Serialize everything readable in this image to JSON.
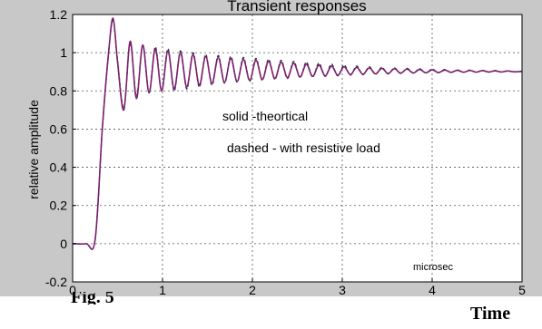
{
  "chart_data": {
    "type": "line",
    "title": "Transient responses",
    "ylabel": "relative amplitude",
    "xlabel": "microsec",
    "xlim": [
      0,
      5
    ],
    "ylim": [
      -0.2,
      1.2
    ],
    "xticks": [
      "0",
      "1",
      "2",
      "3",
      "4",
      "5"
    ],
    "yticks": [
      "-0.2",
      "0",
      "0.2",
      "0.4",
      "0.6",
      "0.8",
      "1",
      "1.2"
    ],
    "grid": true,
    "annotations": [
      "solid -theortical",
      "dashed - with resistive load"
    ],
    "series": [
      {
        "style": "solid",
        "color": "#7a1f6e",
        "x": [
          0,
          0.15,
          0.25,
          0.33,
          0.4,
          0.45,
          0.5,
          0.57,
          0.64,
          0.71,
          0.78,
          0.85,
          0.92,
          0.99,
          1.06,
          1.13,
          1.2,
          1.27,
          1.34,
          1.41,
          1.48,
          1.55,
          1.62,
          1.69,
          1.76,
          1.83,
          1.9,
          1.97,
          2.04,
          2.11,
          2.18,
          2.25,
          2.32,
          2.39,
          2.46,
          2.53,
          2.6,
          2.67,
          2.74,
          2.81,
          2.88,
          2.95,
          3.02,
          3.09,
          3.16,
          3.23,
          3.3,
          3.37,
          3.44,
          3.51,
          3.58,
          3.65,
          3.72,
          3.79,
          3.86,
          3.93,
          4.0,
          4.07,
          4.14,
          4.21,
          4.28,
          4.35,
          4.42,
          4.49,
          4.56,
          4.63,
          4.7,
          4.77,
          4.84,
          4.91,
          5.0
        ],
        "y": [
          0,
          0,
          0.02,
          0.6,
          1.0,
          1.18,
          0.95,
          0.7,
          1.06,
          0.76,
          1.04,
          0.79,
          1.02,
          0.8,
          1.01,
          0.81,
          1.0,
          0.82,
          0.99,
          0.83,
          0.98,
          0.84,
          0.975,
          0.845,
          0.97,
          0.85,
          0.965,
          0.855,
          0.96,
          0.86,
          0.955,
          0.865,
          0.95,
          0.87,
          0.945,
          0.873,
          0.94,
          0.876,
          0.935,
          0.879,
          0.93,
          0.882,
          0.926,
          0.885,
          0.923,
          0.887,
          0.92,
          0.889,
          0.918,
          0.891,
          0.916,
          0.893,
          0.914,
          0.894,
          0.912,
          0.895,
          0.91,
          0.896,
          0.909,
          0.897,
          0.908,
          0.898,
          0.907,
          0.898,
          0.906,
          0.899,
          0.905,
          0.899,
          0.904,
          0.9,
          0.902
        ]
      },
      {
        "style": "dashed",
        "color": "#2a2a3a",
        "x": [
          0,
          0.15,
          0.25,
          0.33,
          0.4,
          0.45,
          0.5,
          0.57,
          0.64,
          0.71,
          0.78,
          0.85,
          0.92,
          0.99,
          1.06,
          1.13,
          1.2,
          1.27,
          1.34,
          1.41,
          1.48,
          1.55,
          1.62,
          1.69,
          1.76,
          1.83,
          1.9,
          1.97,
          2.04,
          2.11,
          2.18,
          2.25,
          2.32,
          2.39,
          2.46,
          2.53,
          2.6,
          2.67,
          2.74,
          2.81,
          2.88,
          2.95,
          3.02,
          3.09,
          3.16,
          3.23,
          3.3,
          3.37,
          3.44,
          3.51,
          3.58,
          3.65,
          3.72,
          3.79,
          3.86,
          3.93,
          4.0,
          4.07,
          4.14,
          4.21,
          4.28,
          4.35,
          4.42,
          4.49,
          4.56,
          4.63,
          4.7,
          4.77,
          4.84,
          4.91,
          5.0
        ],
        "y": [
          0,
          0,
          0.02,
          0.6,
          1.0,
          1.17,
          0.96,
          0.71,
          1.05,
          0.77,
          1.04,
          0.79,
          1.03,
          0.8,
          1.02,
          0.8,
          1.01,
          0.81,
          1.0,
          0.82,
          0.99,
          0.83,
          0.985,
          0.84,
          0.98,
          0.845,
          0.975,
          0.85,
          0.97,
          0.855,
          0.965,
          0.86,
          0.96,
          0.865,
          0.955,
          0.87,
          0.95,
          0.873,
          0.945,
          0.876,
          0.94,
          0.879,
          0.935,
          0.882,
          0.93,
          0.885,
          0.926,
          0.887,
          0.923,
          0.889,
          0.92,
          0.891,
          0.918,
          0.893,
          0.916,
          0.894,
          0.914,
          0.895,
          0.912,
          0.896,
          0.91,
          0.897,
          0.909,
          0.898,
          0.908,
          0.898,
          0.907,
          0.899,
          0.906,
          0.899,
          0.904
        ]
      }
    ]
  },
  "figure": {
    "caption": "Fig. 5",
    "outside_xlabel": "Time"
  }
}
